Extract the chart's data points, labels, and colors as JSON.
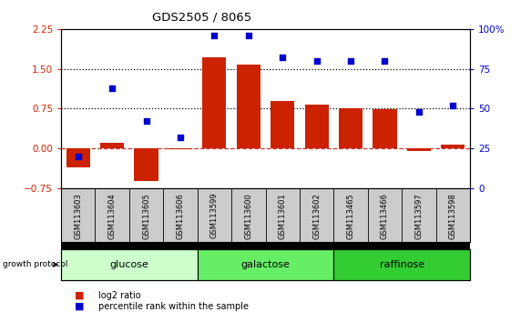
{
  "title": "GDS2505 / 8065",
  "samples": [
    "GSM113603",
    "GSM113604",
    "GSM113605",
    "GSM113606",
    "GSM113599",
    "GSM113600",
    "GSM113601",
    "GSM113602",
    "GSM113465",
    "GSM113466",
    "GSM113597",
    "GSM113598"
  ],
  "log2_ratio": [
    -0.35,
    0.1,
    -0.62,
    -0.02,
    1.72,
    1.58,
    0.9,
    0.82,
    0.75,
    0.74,
    -0.05,
    0.07
  ],
  "percentile_rank": [
    20,
    63,
    42,
    32,
    96,
    96,
    82,
    80,
    80,
    80,
    48,
    52
  ],
  "groups": [
    {
      "name": "glucose",
      "start": 0,
      "end": 3,
      "color": "#ccffcc"
    },
    {
      "name": "galactose",
      "start": 4,
      "end": 7,
      "color": "#66ee66"
    },
    {
      "name": "raffinose",
      "start": 8,
      "end": 11,
      "color": "#33cc33"
    }
  ],
  "bar_color": "#cc2200",
  "dot_color": "#0000cc",
  "ylim_left": [
    -0.75,
    2.25
  ],
  "ylim_right": [
    0,
    100
  ],
  "yticks_left": [
    -0.75,
    0,
    0.75,
    1.5,
    2.25
  ],
  "yticks_right": [
    0,
    25,
    50,
    75,
    100
  ],
  "hlines_dotted": [
    0.75,
    1.5
  ],
  "hline_dashed": 0.0,
  "tick_label_color_left": "#cc2200",
  "tick_label_color_right": "#0000cc",
  "legend_items": [
    "log2 ratio",
    "percentile rank within the sample"
  ],
  "legend_colors": [
    "#cc2200",
    "#0000cc"
  ],
  "sample_bg_color": "#cccccc",
  "group_border_color": "#000000"
}
